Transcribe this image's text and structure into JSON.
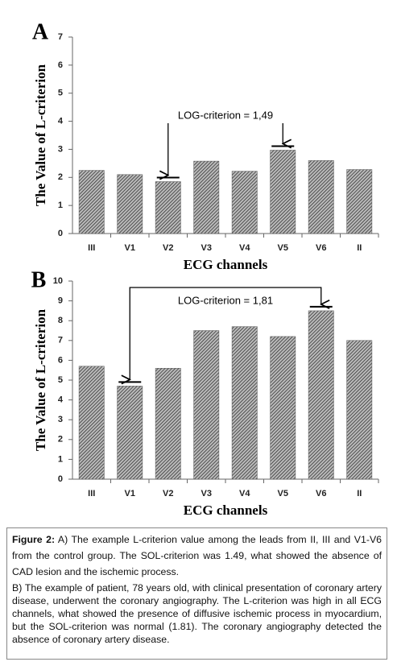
{
  "chart_data": [
    {
      "type": "bar",
      "panel": "A",
      "y_label": "The Value of L-criterion",
      "x_label": "ECG channels",
      "annotation": "LOG-criterion = 1,49",
      "categories": [
        "III",
        "V1",
        "V2",
        "V3",
        "V4",
        "V5",
        "V6",
        "II"
      ],
      "values": [
        2.25,
        2.1,
        1.85,
        2.58,
        2.22,
        2.97,
        2.6,
        2.28
      ],
      "color": "#555555",
      "ylim": [
        0,
        7
      ],
      "yticks": [
        0,
        1,
        2,
        3,
        4,
        5,
        6,
        7
      ]
    },
    {
      "type": "bar",
      "panel": "B",
      "y_label": "The Value of L-criterion",
      "x_label": "ECG channels",
      "annotation": "LOG-criterion = 1,81",
      "categories": [
        "III",
        "V1",
        "V2",
        "V3",
        "V4",
        "V5",
        "V6",
        "II"
      ],
      "values": [
        5.7,
        4.7,
        5.6,
        7.5,
        7.7,
        7.2,
        8.5,
        7.0
      ],
      "color": "#555555",
      "ylim": [
        0,
        10
      ],
      "yticks": [
        0,
        1,
        2,
        3,
        4,
        5,
        6,
        7,
        8,
        9,
        10
      ]
    }
  ],
  "caption": {
    "title": "Figure 2:",
    "text_a": "A) The example L-criterion value among the leads from II, III and V1-V6 from the control group. The SOL-criterion was 1.49, what showed the absence of CAD lesion and the ischemic process.",
    "text_b": "B) The example of patient, 78 years old, with clinical presentation of coronary artery disease, underwent the coronary angiography. The L-criterion was high in all ECG channels, what showed the presence of diffusive ischemic process in myocardium, but the SOL-criterion was normal (1.81). The coronary angiography detected the absence of coronary artery disease."
  }
}
